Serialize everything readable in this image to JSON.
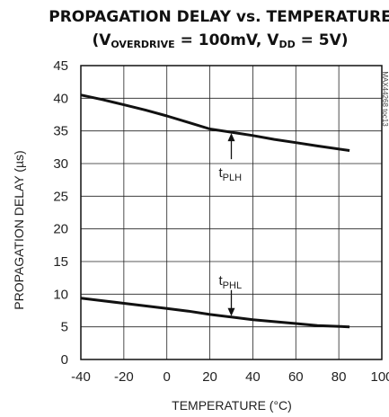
{
  "chart_data": {
    "type": "line",
    "title_line1": "PROPAGATION DELAY vs. TEMPERATURE",
    "title_line2": {
      "open": "(V",
      "sub1": "OVERDRIVE",
      "mid": " = 100mV, V",
      "sub2": "DD",
      "close": " = 5V)"
    },
    "xlabel": "TEMPERATURE (°C)",
    "ylabel": "PROPAGATION DELAY (µs)",
    "xlim": [
      -40,
      100
    ],
    "ylim": [
      0,
      45
    ],
    "xticks": [
      "-40",
      "-20",
      "0",
      "20",
      "40",
      "60",
      "80",
      "100"
    ],
    "yticks": [
      "0",
      "5",
      "10",
      "15",
      "20",
      "25",
      "30",
      "35",
      "40",
      "45"
    ],
    "grid": true,
    "side_note": "MAX44268 toc13",
    "series": [
      {
        "name": "tPLH",
        "x": [
          -40,
          -30,
          -20,
          -10,
          0,
          10,
          20,
          30,
          40,
          50,
          60,
          70,
          85
        ],
        "y": [
          40.5,
          39.8,
          39.0,
          38.2,
          37.3,
          36.3,
          35.3,
          34.8,
          34.3,
          33.7,
          33.2,
          32.7,
          32.0
        ]
      },
      {
        "name": "tPHL",
        "x": [
          -40,
          -30,
          -20,
          -10,
          0,
          10,
          20,
          30,
          40,
          50,
          60,
          70,
          85
        ],
        "y": [
          9.4,
          9.0,
          8.6,
          8.2,
          7.8,
          7.4,
          6.9,
          6.5,
          6.1,
          5.8,
          5.5,
          5.2,
          5.0
        ]
      }
    ],
    "annotations": [
      {
        "label": "t",
        "sub": "PLH",
        "target": [
          30,
          34.8
        ]
      },
      {
        "label": "t",
        "sub": "PHL",
        "target": [
          30,
          6.5
        ]
      }
    ]
  }
}
